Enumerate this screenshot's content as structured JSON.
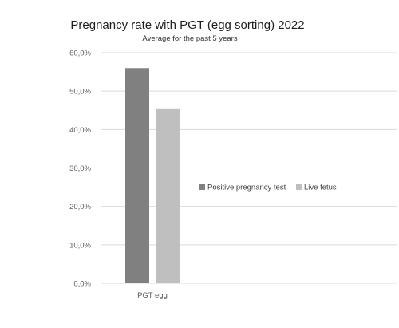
{
  "chart_data": {
    "type": "bar",
    "title": "Pregnancy rate with PGT (egg sorting) 2022",
    "subtitle": "Average for the past 5 years",
    "categories": [
      "PGT egg"
    ],
    "series": [
      {
        "name": "Positive pregnancy test",
        "values": [
          56.0
        ],
        "color": "#808080"
      },
      {
        "name": "Live fetus",
        "values": [
          45.5
        ],
        "color": "#bfbfbf"
      }
    ],
    "ylim": [
      0,
      60
    ],
    "yticks": [
      0,
      10,
      20,
      30,
      40,
      50,
      60
    ],
    "ytick_labels": [
      "0,0%",
      "10,0%",
      "20,0%",
      "30,0%",
      "40,0%",
      "50,0%",
      "60,0%"
    ],
    "grid": true,
    "legend": "right"
  }
}
